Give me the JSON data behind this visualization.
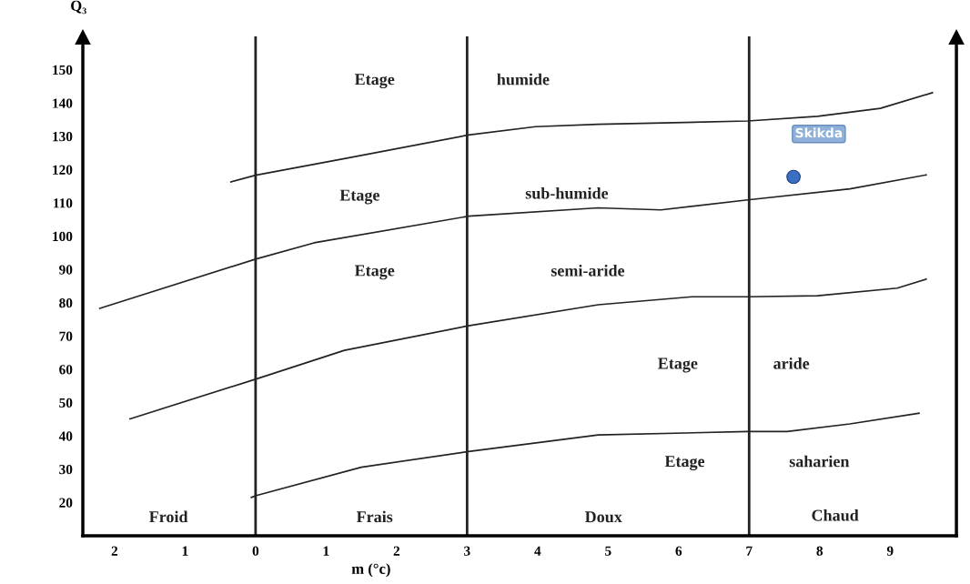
{
  "chart_data": {
    "type": "line",
    "xlabel": "m (°c)",
    "ylabel": "Q₃",
    "xlim": [
      -2.45,
      9.94
    ],
    "ylim": [
      10,
      160
    ],
    "xticks": [
      {
        "value": -2,
        "label": "2"
      },
      {
        "value": -1,
        "label": "1"
      },
      0,
      1,
      2,
      3,
      4,
      5,
      6,
      7,
      8,
      9
    ],
    "yticks": [
      20,
      30,
      40,
      50,
      60,
      70,
      80,
      90,
      100,
      110,
      120,
      130,
      140,
      150
    ],
    "grid": false,
    "legend": false,
    "marker": "none",
    "line_style": "solid",
    "series": [
      {
        "color": "#222222",
        "x": [
          -0.35,
          0,
          1.26,
          3.02,
          3.97,
          4.86,
          6.98,
          7.97,
          8.86,
          9.6
        ],
        "values": [
          116.3,
          118.3,
          123.3,
          130.4,
          132.9,
          133.6,
          134.6,
          136.0,
          138.4,
          143.1
        ]
      },
      {
        "color": "#222222",
        "x": [
          -2.21,
          0,
          0.83,
          3.02,
          4.86,
          5.75,
          6.98,
          8.43,
          9.51
        ],
        "values": [
          78.3,
          93.1,
          98.0,
          106.0,
          108.5,
          107.9,
          110.9,
          114.2,
          118.4
        ]
      },
      {
        "color": "#222222",
        "x": [
          -1.78,
          0.01,
          1.26,
          3.02,
          4.86,
          6.19,
          6.98,
          7.97,
          9.1,
          9.51
        ],
        "values": [
          45.1,
          57.1,
          65.7,
          73.1,
          79.4,
          81.8,
          81.8,
          82.1,
          84.4,
          87.1
        ]
      },
      {
        "color": "#222222",
        "x": [
          -0.06,
          0.01,
          1.5,
          3.02,
          4.86,
          6.98,
          7.54,
          8.43,
          9.41
        ],
        "values": [
          21.5,
          22.1,
          30.6,
          35.3,
          40.3,
          41.3,
          41.3,
          43.6,
          46.8
        ]
      },
      {
        "type": "scatter",
        "name": "Skikda",
        "color": "#3a6fc4",
        "x": [
          7.63
        ],
        "values": [
          117.8
        ],
        "marker": "circle"
      }
    ],
    "ref_lines": [
      {
        "axis": "x",
        "value": 0,
        "color": "#222222"
      },
      {
        "axis": "x",
        "value": 3,
        "color": "#222222"
      },
      {
        "axis": "x",
        "value": 7,
        "color": "#222222"
      }
    ],
    "annotations": [
      "Etage",
      "humide",
      "Etage",
      "sub-humide",
      "Etage",
      "semi-aride",
      "Etage",
      "aride",
      "Etage",
      "saharien",
      "Froid",
      "Frais",
      "Doux",
      "Chaud"
    ]
  }
}
